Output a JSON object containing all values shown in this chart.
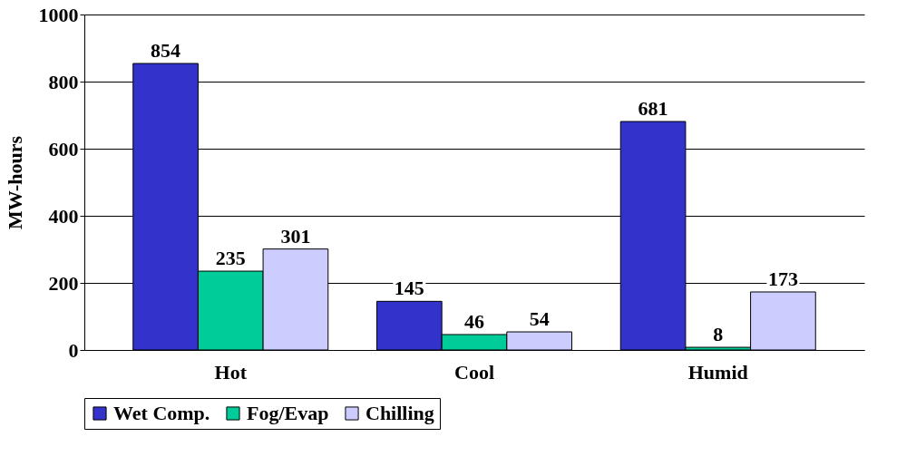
{
  "chart_data": {
    "type": "bar",
    "ylabel": "MW-hours",
    "categories": [
      "Hot",
      "Cool",
      "Humid"
    ],
    "series": [
      {
        "name": "Wet Comp.",
        "color": "#3333cc",
        "values": [
          854,
          145,
          681
        ]
      },
      {
        "name": "Fog/Evap",
        "color": "#00cc99",
        "values": [
          235,
          46,
          8
        ]
      },
      {
        "name": "Chilling",
        "color": "#ccccff",
        "values": [
          301,
          54,
          173
        ]
      }
    ],
    "ylim": [
      0,
      1000
    ],
    "yticks": [
      0,
      200,
      400,
      600,
      800,
      1000
    ],
    "grid": "y",
    "legend": "bottom",
    "data_labels": true
  }
}
